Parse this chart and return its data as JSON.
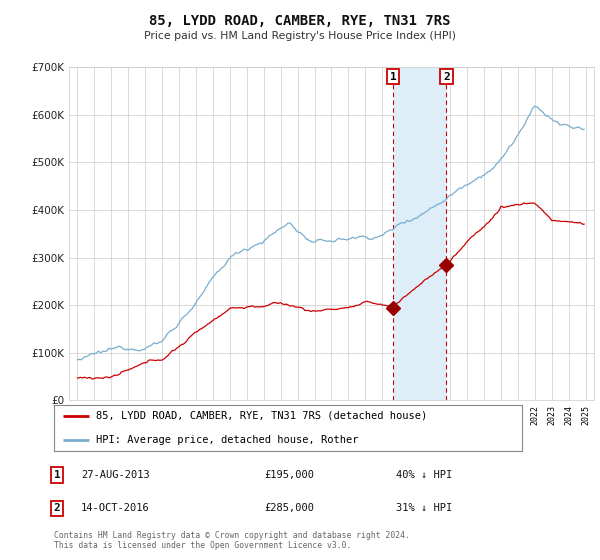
{
  "title": "85, LYDD ROAD, CAMBER, RYE, TN31 7RS",
  "subtitle": "Price paid vs. HM Land Registry's House Price Index (HPI)",
  "ylim": [
    0,
    700000
  ],
  "xlim_start": 1994.5,
  "xlim_end": 2025.5,
  "sale1_date": 2013.65,
  "sale1_price": 195000,
  "sale2_date": 2016.79,
  "sale2_price": 285000,
  "legend_property": "85, LYDD ROAD, CAMBER, RYE, TN31 7RS (detached house)",
  "legend_hpi": "HPI: Average price, detached house, Rother",
  "note1_label": "1",
  "note1_date": "27-AUG-2013",
  "note1_price": "£195,000",
  "note1_pct": "40% ↓ HPI",
  "note2_label": "2",
  "note2_date": "14-OCT-2016",
  "note2_price": "£285,000",
  "note2_pct": "31% ↓ HPI",
  "footer": "Contains HM Land Registry data © Crown copyright and database right 2024.\nThis data is licensed under the Open Government Licence v3.0.",
  "property_color": "#cc0000",
  "hpi_color": "#7aadcf",
  "shade_color": "#ddeef8",
  "marker_color": "#990000",
  "box_border_color": "#cc0000",
  "background": "#ffffff",
  "grid_color": "#cccccc"
}
